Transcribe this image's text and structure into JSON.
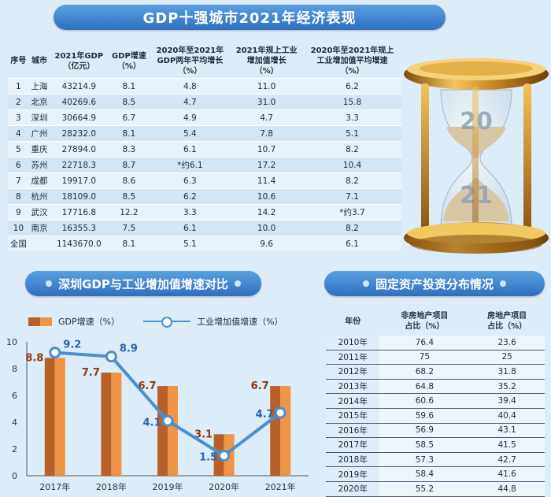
{
  "title": "GDP十强城市2021年经济表现",
  "city_table": {
    "headers": [
      "序号",
      "城市",
      "2021年GDP\n（亿元）",
      "GDP增速\n（%）",
      "2020年至2021年\nGDP两年平均增长\n（%）",
      "2021年规上工业\n增加值增长\n（%）",
      "2020年至2021年规上\n工业增加值平均增速\n（%）"
    ],
    "rows": [
      [
        "1",
        "上海",
        "43214.9",
        "8.1",
        "4.8",
        "11.0",
        "6.2"
      ],
      [
        "2",
        "北京",
        "40269.6",
        "8.5",
        "4.7",
        "31.0",
        "15.8"
      ],
      [
        "3",
        "深圳",
        "30664.9",
        "6.7",
        "4.9",
        "4.7",
        "3.3"
      ],
      [
        "4",
        "广州",
        "28232.0",
        "8.1",
        "5.4",
        "7.8",
        "5.1"
      ],
      [
        "5",
        "重庆",
        "27894.0",
        "8.3",
        "6.1",
        "10.7",
        "8.2"
      ],
      [
        "6",
        "苏州",
        "22718.3",
        "8.7",
        "*约6.1",
        "17.2",
        "10.4"
      ],
      [
        "7",
        "成都",
        "19917.0",
        "8.6",
        "6.3",
        "11.4",
        "8.2"
      ],
      [
        "8",
        "杭州",
        "18109.0",
        "8.5",
        "6.2",
        "10.6",
        "7.1"
      ],
      [
        "9",
        "武汉",
        "17716.8",
        "12.2",
        "3.3",
        "14.2",
        "*约3.7"
      ],
      [
        "10",
        "南京",
        "16355.3",
        "7.5",
        "6.1",
        "10.0",
        "8.2"
      ],
      [
        "全国",
        "",
        "1143670.0",
        "8.1",
        "5.1",
        "9.6",
        "6.1"
      ]
    ]
  },
  "hourglass": {
    "top_number": "20",
    "bottom_number": "21"
  },
  "chart_title": "深圳GDP与工业增加值增速对比",
  "chart_data": {
    "type": "bar",
    "title": "深圳GDP与工业增加值增速对比",
    "categories": [
      "2017年",
      "2018年",
      "2019年",
      "2020年",
      "2021年"
    ],
    "series": [
      {
        "name": "GDP增速（%）",
        "type": "bar",
        "values": [
          8.8,
          7.7,
          6.7,
          3.1,
          6.7
        ]
      },
      {
        "name": "工业增加值增速（%）",
        "type": "line",
        "values": [
          9.2,
          8.9,
          4.1,
          1.5,
          4.7
        ]
      }
    ],
    "ylim": [
      0,
      10
    ],
    "yticks": [
      0,
      2,
      4,
      6,
      8,
      10
    ],
    "grid": false,
    "legend_position": "top-left",
    "colors": {
      "bar_dark": "#b8602a",
      "bar_light": "#ef9548",
      "line": "#4a8fd0"
    }
  },
  "investment": {
    "title": "固定资产投资分布情况",
    "headers": [
      "年份",
      "非房地产项目\n占比（%）",
      "房地产项目\n占比（%）"
    ],
    "rows": [
      [
        "2010年",
        "76.4",
        "23.6"
      ],
      [
        "2011年",
        "75",
        "25"
      ],
      [
        "2012年",
        "68.2",
        "31.8"
      ],
      [
        "2013年",
        "64.8",
        "35.2"
      ],
      [
        "2014年",
        "60.6",
        "39.4"
      ],
      [
        "2015年",
        "59.6",
        "40.4"
      ],
      [
        "2016年",
        "56.9",
        "43.1"
      ],
      [
        "2017年",
        "58.5",
        "41.5"
      ],
      [
        "2018年",
        "57.3",
        "42.7"
      ],
      [
        "2019年",
        "58.4",
        "41.6"
      ],
      [
        "2020年",
        "55.2",
        "44.8"
      ]
    ]
  }
}
